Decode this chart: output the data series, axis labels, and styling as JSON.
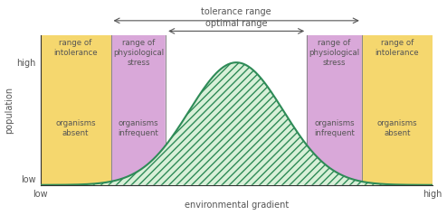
{
  "background_color": "#ffffff",
  "yellow_color": "#f5d76e",
  "purple_color": "#d9a8d9",
  "green_line_color": "#2e8b57",
  "green_hatch_color": "#2e8b57",
  "axis_color": "#333333",
  "text_color": "#555555",
  "zone_boundaries": [
    0.0,
    0.18,
    0.32,
    0.68,
    0.82,
    1.0
  ],
  "bell_mean": 0.5,
  "bell_std": 0.12,
  "bell_scale": 0.82,
  "ylabel": "population",
  "xlabel": "environmental gradient",
  "yticks_labels": [
    "low",
    "high"
  ],
  "xticks_labels": [
    "low",
    "high"
  ],
  "label_tolerance_range": "tolerance range",
  "label_optimal_range": "optimal range",
  "label_range_intolerance_L": "range of\nintolerance",
  "label_range_intolerance_R": "range of\nintolerance",
  "label_physiological_L": "range of\nphysiological\nstress",
  "label_physiological_R": "range of\nphysiological\nstress",
  "label_absent_L": "organisms\nabsent",
  "label_absent_R": "organisms\nabsent",
  "label_infrequent_L": "organisms\ninfrequent",
  "label_infrequent_R": "organisms\ninfrequent"
}
